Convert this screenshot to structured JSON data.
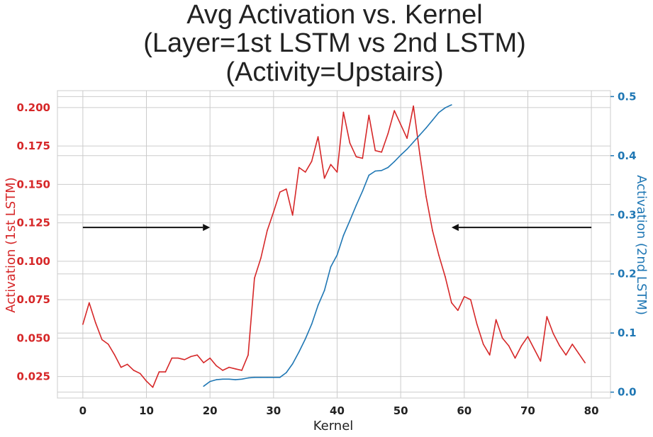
{
  "colors": {
    "series_1st": "#d62728",
    "series_2nd": "#1f77b4",
    "grid": "#cccccc",
    "arrow": "#111111",
    "text": "#222222"
  },
  "chart_data": {
    "type": "line",
    "title_lines": [
      "Avg Activation vs. Kernel",
      "(Layer=1st LSTM vs 2nd LSTM)",
      "(Activity=Upstairs)"
    ],
    "xlabel": "Kernel",
    "ylabel_left": "Activation (1st LSTM)",
    "ylabel_right": "Activation (2nd LSTM)",
    "xlim": [
      -4,
      83
    ],
    "ylim_left": [
      0.011,
      0.211
    ],
    "ylim_right": [
      -0.01,
      0.51
    ],
    "x_ticks": [
      0,
      10,
      20,
      30,
      40,
      50,
      60,
      70,
      80
    ],
    "y_left_ticks": [
      "0.025",
      "0.050",
      "0.075",
      "0.100",
      "0.125",
      "0.150",
      "0.175",
      "0.200"
    ],
    "y_right_ticks": [
      "0.0",
      "0.1",
      "0.2",
      "0.3",
      "0.4",
      "0.5"
    ],
    "grid": true,
    "series": [
      {
        "axis": "left",
        "x": [
          0,
          1,
          2,
          3,
          4,
          5,
          6,
          7,
          8,
          9,
          10,
          11,
          12,
          13,
          14,
          15,
          16,
          17,
          18,
          19,
          20,
          21,
          22,
          23,
          24,
          25,
          26,
          27,
          28,
          29,
          30,
          31,
          32,
          33,
          34,
          35,
          36,
          37,
          38,
          39,
          40,
          41,
          42,
          43,
          44,
          45,
          46,
          47,
          48,
          49,
          50,
          51,
          52,
          53,
          54,
          55,
          56,
          57,
          58,
          59,
          60,
          61,
          62,
          63,
          64,
          65,
          66,
          67,
          68,
          69,
          70,
          71,
          72,
          73,
          74,
          75,
          76,
          77,
          78,
          79
        ],
        "values": [
          0.059,
          0.073,
          0.06,
          0.049,
          0.046,
          0.039,
          0.031,
          0.033,
          0.029,
          0.027,
          0.022,
          0.018,
          0.028,
          0.028,
          0.037,
          0.037,
          0.036,
          0.038,
          0.039,
          0.034,
          0.037,
          0.032,
          0.029,
          0.031,
          0.03,
          0.029,
          0.039,
          0.089,
          0.102,
          0.12,
          0.132,
          0.145,
          0.147,
          0.13,
          0.161,
          0.158,
          0.165,
          0.181,
          0.154,
          0.163,
          0.158,
          0.197,
          0.177,
          0.168,
          0.167,
          0.195,
          0.172,
          0.171,
          0.183,
          0.198,
          0.189,
          0.18,
          0.201,
          0.17,
          0.142,
          0.12,
          0.104,
          0.09,
          0.073,
          0.068,
          0.077,
          0.075,
          0.059,
          0.046,
          0.039,
          0.062,
          0.05,
          0.045,
          0.037,
          0.045,
          0.051,
          0.043,
          0.035,
          0.064,
          0.053,
          0.045,
          0.039,
          0.046,
          0.04,
          0.034
        ]
      },
      {
        "axis": "right",
        "x": [
          19,
          20,
          21,
          22,
          23,
          24,
          25,
          26,
          27,
          28,
          29,
          30,
          31,
          32,
          33,
          34,
          35,
          36,
          37,
          38,
          39,
          40,
          41,
          42,
          43,
          44,
          45,
          46,
          47,
          48,
          49,
          50,
          51,
          52,
          53,
          54,
          55,
          56,
          57,
          58
        ],
        "values": [
          0.01,
          0.018,
          0.021,
          0.022,
          0.022,
          0.021,
          0.022,
          0.024,
          0.025,
          0.025,
          0.025,
          0.025,
          0.025,
          0.033,
          0.048,
          0.068,
          0.09,
          0.115,
          0.147,
          0.172,
          0.212,
          0.232,
          0.265,
          0.29,
          0.316,
          0.34,
          0.367,
          0.374,
          0.375,
          0.38,
          0.39,
          0.401,
          0.411,
          0.423,
          0.435,
          0.447,
          0.46,
          0.473,
          0.481,
          0.486
        ]
      }
    ],
    "annotations": [
      {
        "type": "arrow",
        "x_from": 0,
        "x_to": 20,
        "y": 0.122,
        "axis": "left",
        "head": "end"
      },
      {
        "type": "arrow",
        "x_from": 80,
        "x_to": 58,
        "y": 0.122,
        "axis": "left",
        "head": "end"
      }
    ]
  }
}
